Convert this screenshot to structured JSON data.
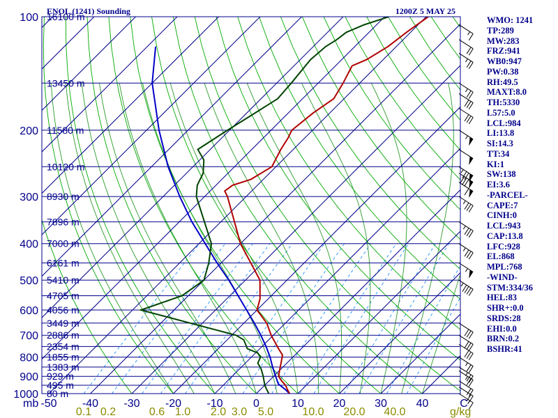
{
  "header": {
    "station": "ENOL (1241) Sounding",
    "datetime": "1200Z  5 MAY 25"
  },
  "indices": [
    "WMO: 1241",
    "TP:289",
    "MW:283",
    "FRZ:941",
    "WB0:947",
    "PW:0.38",
    "RH:49.5",
    "MAXT:8.0",
    "TH:5330",
    "L57:5.0",
    "LCL:984",
    "LI:13.8",
    "SI:14.3",
    "TT:34",
    "KI:1",
    "SW:138",
    "EI:3.6",
    "-PARCEL-",
    "CAPE:7",
    "CINH:0",
    "LCL:943",
    "CAP:13.8",
    "LFC:928",
    "EL:868",
    "MPL:768",
    "-WIND-",
    "STM:334/36",
    "HEL:83",
    "SHR+:0.0",
    "SRDS:28",
    "EHI:0.0",
    "BRN:0.2",
    "BSHR:41"
  ],
  "colors": {
    "frame": "#00008b",
    "isobar": "#00008b",
    "isotherm": "#00008b",
    "dry_adiabat": "#00aa00",
    "moist_adiabat": "#2a9a2a",
    "mixing_ratio": "#1e90ff",
    "temperature": "#b00000",
    "dewpoint": "#004400",
    "parcel": "#0000c8",
    "barbs": "#000000",
    "mixing_label": "#8b8b00"
  },
  "chart_data": {
    "type": "skew-t",
    "pressure_axis_label": "mb",
    "pressure_ticks": [
      {
        "p": 100,
        "label": "100"
      },
      {
        "p": 200,
        "label": "200"
      },
      {
        "p": 300,
        "label": "300"
      },
      {
        "p": 400,
        "label": "400"
      },
      {
        "p": 500,
        "label": "500"
      },
      {
        "p": 600,
        "label": "600"
      },
      {
        "p": 700,
        "label": "700"
      },
      {
        "p": 800,
        "label": "800"
      },
      {
        "p": 900,
        "label": "900"
      },
      {
        "p": 1000,
        "label": "1000"
      }
    ],
    "height_labels": [
      {
        "p": 100,
        "label": "16100 m"
      },
      {
        "p": 150,
        "label": "13450 m"
      },
      {
        "p": 200,
        "label": "11580 m"
      },
      {
        "p": 250,
        "label": "10120 m"
      },
      {
        "p": 300,
        "label": "8930 m"
      },
      {
        "p": 350,
        "label": "7896 m"
      },
      {
        "p": 400,
        "label": "7000 m"
      },
      {
        "p": 450,
        "label": "6161 m"
      },
      {
        "p": 500,
        "label": "5410 m"
      },
      {
        "p": 550,
        "label": "4705 m"
      },
      {
        "p": 600,
        "label": "4056 m"
      },
      {
        "p": 650,
        "label": "3449 m"
      },
      {
        "p": 700,
        "label": "2886 m"
      },
      {
        "p": 750,
        "label": "2354 m"
      },
      {
        "p": 800,
        "label": "1855 m"
      },
      {
        "p": 850,
        "label": "1383 m"
      },
      {
        "p": 900,
        "label": "929 m"
      },
      {
        "p": 950,
        "label": "495 m"
      },
      {
        "p": 1000,
        "label": "80 m"
      }
    ],
    "temperature_ticks": [
      {
        "t": -50,
        "label": "-50"
      },
      {
        "t": -40,
        "label": "-40"
      },
      {
        "t": -30,
        "label": "-30"
      },
      {
        "t": -20,
        "label": "-20"
      },
      {
        "t": -10,
        "label": "-10"
      },
      {
        "t": 0,
        "label": "0"
      },
      {
        "t": 10,
        "label": "10"
      },
      {
        "t": 20,
        "label": "20"
      },
      {
        "t": 30,
        "label": "30"
      },
      {
        "t": 40,
        "label": "40"
      },
      {
        "t": 50,
        "label": "C"
      }
    ],
    "mixing_ratio_labels": [
      {
        "w": 0.1,
        "label": "0.1"
      },
      {
        "w": 0.2,
        "label": "0.2"
      },
      {
        "w": 0.6,
        "label": "0.6"
      },
      {
        "w": 1.0,
        "label": "1.0"
      },
      {
        "w": 2.0,
        "label": "2.0"
      },
      {
        "w": 3.0,
        "label": "3.0"
      },
      {
        "w": 5.0,
        "label": "5.0"
      },
      {
        "w": 10.0,
        "label": "10.0"
      },
      {
        "w": 20.0,
        "label": "20.0"
      },
      {
        "w": 40.0,
        "label": "40.0"
      }
    ],
    "mixing_ratio_unit": "g/kg",
    "temperature_profile": [
      {
        "p": 1000,
        "t": 8.0
      },
      {
        "p": 975,
        "t": 6.5
      },
      {
        "p": 950,
        "t": 5.0
      },
      {
        "p": 925,
        "t": 3.0
      },
      {
        "p": 900,
        "t": 1.2
      },
      {
        "p": 860,
        "t": -0.3
      },
      {
        "p": 830,
        "t": -1.4
      },
      {
        "p": 790,
        "t": -3.0
      },
      {
        "p": 760,
        "t": -5.5
      },
      {
        "p": 700,
        "t": -10.5
      },
      {
        "p": 650,
        "t": -14.5
      },
      {
        "p": 600,
        "t": -20.0
      },
      {
        "p": 560,
        "t": -22.0
      },
      {
        "p": 500,
        "t": -26.5
      },
      {
        "p": 400,
        "t": -40.0
      },
      {
        "p": 300,
        "t": -54.5
      },
      {
        "p": 290,
        "t": -56.5
      },
      {
        "p": 280,
        "t": -56.0
      },
      {
        "p": 270,
        "t": -53.0
      },
      {
        "p": 250,
        "t": -51.0
      },
      {
        "p": 225,
        "t": -53.0
      },
      {
        "p": 210,
        "t": -54.0
      },
      {
        "p": 200,
        "t": -55.0
      },
      {
        "p": 180,
        "t": -54.0
      },
      {
        "p": 165,
        "t": -52.5
      },
      {
        "p": 150,
        "t": -54.0
      },
      {
        "p": 135,
        "t": -56.0
      },
      {
        "p": 130,
        "t": -54.0
      },
      {
        "p": 120,
        "t": -52.0
      },
      {
        "p": 110,
        "t": -51.0
      },
      {
        "p": 100,
        "t": -49.5
      }
    ],
    "dewpoint_profile": [
      {
        "p": 1000,
        "t": 3.0
      },
      {
        "p": 975,
        "t": 1.5
      },
      {
        "p": 950,
        "t": 0.0
      },
      {
        "p": 900,
        "t": -2.5
      },
      {
        "p": 860,
        "t": -4.8
      },
      {
        "p": 830,
        "t": -7.0
      },
      {
        "p": 800,
        "t": -7.8
      },
      {
        "p": 780,
        "t": -9.5
      },
      {
        "p": 760,
        "t": -13.0
      },
      {
        "p": 720,
        "t": -16.0
      },
      {
        "p": 700,
        "t": -19.0
      },
      {
        "p": 600,
        "t": -48.0
      },
      {
        "p": 550,
        "t": -41.5
      },
      {
        "p": 500,
        "t": -40.0
      },
      {
        "p": 450,
        "t": -43.0
      },
      {
        "p": 400,
        "t": -47.0
      },
      {
        "p": 300,
        "t": -62.0
      },
      {
        "p": 280,
        "t": -64.5
      },
      {
        "p": 260,
        "t": -66.0
      },
      {
        "p": 240,
        "t": -69.0
      },
      {
        "p": 225,
        "t": -73.0
      },
      {
        "p": 200,
        "t": -70.5
      },
      {
        "p": 180,
        "t": -68.0
      },
      {
        "p": 165,
        "t": -66.0
      },
      {
        "p": 150,
        "t": -66.5
      },
      {
        "p": 130,
        "t": -67.5
      },
      {
        "p": 120,
        "t": -67.0
      },
      {
        "p": 115,
        "t": -66.0
      },
      {
        "p": 110,
        "t": -65.5
      },
      {
        "p": 105,
        "t": -63.0
      },
      {
        "p": 100,
        "t": -59.0
      }
    ],
    "parcel_profile": [
      {
        "p": 1000,
        "t": 8.0
      },
      {
        "p": 975,
        "t": 6.0
      },
      {
        "p": 943,
        "t": 3.0
      },
      {
        "p": 900,
        "t": 0.5
      },
      {
        "p": 850,
        "t": -2.5
      },
      {
        "p": 800,
        "t": -5.5
      },
      {
        "p": 750,
        "t": -9.0
      },
      {
        "p": 700,
        "t": -13.0
      },
      {
        "p": 650,
        "t": -17.5
      },
      {
        "p": 600,
        "t": -22.5
      },
      {
        "p": 550,
        "t": -28.0
      },
      {
        "p": 500,
        "t": -34.0
      },
      {
        "p": 450,
        "t": -41.0
      },
      {
        "p": 400,
        "t": -48.5
      },
      {
        "p": 350,
        "t": -57.0
      },
      {
        "p": 300,
        "t": -66.0
      },
      {
        "p": 250,
        "t": -76.0
      },
      {
        "p": 200,
        "t": -87.0
      },
      {
        "p": 150,
        "t": -100.0
      },
      {
        "p": 120,
        "t": -108.0
      }
    ],
    "wind_barbs": [
      {
        "p": 1000,
        "dir": 300,
        "spd": 15
      },
      {
        "p": 960,
        "dir": 300,
        "spd": 20
      },
      {
        "p": 925,
        "dir": 300,
        "spd": 20
      },
      {
        "p": 870,
        "dir": 300,
        "spd": 25
      },
      {
        "p": 850,
        "dir": 300,
        "spd": 25
      },
      {
        "p": 800,
        "dir": 300,
        "spd": 25
      },
      {
        "p": 740,
        "dir": 300,
        "spd": 30
      },
      {
        "p": 700,
        "dir": 300,
        "spd": 30
      },
      {
        "p": 650,
        "dir": 300,
        "spd": 30
      },
      {
        "p": 500,
        "dir": 300,
        "spd": 45
      },
      {
        "p": 450,
        "dir": 300,
        "spd": 55
      },
      {
        "p": 400,
        "dir": 300,
        "spd": 35
      },
      {
        "p": 350,
        "dir": 300,
        "spd": 35
      },
      {
        "p": 300,
        "dir": 300,
        "spd": 35
      },
      {
        "p": 275,
        "dir": 300,
        "spd": 60
      },
      {
        "p": 260,
        "dir": 300,
        "spd": 80
      },
      {
        "p": 250,
        "dir": 300,
        "spd": 75
      },
      {
        "p": 225,
        "dir": 300,
        "spd": 50
      },
      {
        "p": 200,
        "dir": 300,
        "spd": 55
      },
      {
        "p": 175,
        "dir": 300,
        "spd": 30
      },
      {
        "p": 160,
        "dir": 300,
        "spd": 30
      },
      {
        "p": 150,
        "dir": 300,
        "spd": 25
      },
      {
        "p": 125,
        "dir": 300,
        "spd": 25
      },
      {
        "p": 115,
        "dir": 300,
        "spd": 20
      },
      {
        "p": 105,
        "dir": 300,
        "spd": 15
      }
    ]
  }
}
